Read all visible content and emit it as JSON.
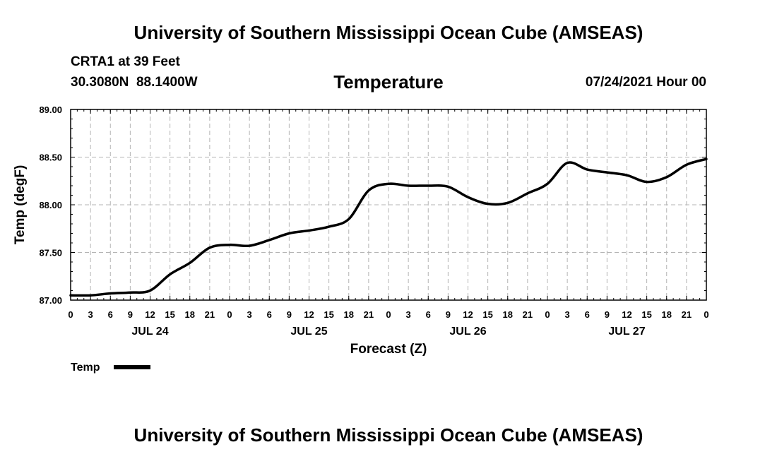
{
  "header": {
    "title": "University of Southern Mississippi Ocean Cube (AMSEAS)",
    "station": "CRTA1 at 39 Feet",
    "coords": "30.3080N  88.1400W",
    "variable": "Temperature",
    "datetime": "07/24/2021 Hour 00"
  },
  "footer": {
    "title": "University of Southern Mississippi Ocean Cube (AMSEAS)"
  },
  "chart_data": {
    "type": "line",
    "title": "Temperature",
    "xlabel": "Forecast (Z)",
    "ylabel": "Temp (degF)",
    "ylim": [
      87.0,
      89.0
    ],
    "xlim": [
      0,
      96
    ],
    "grid": true,
    "y_ticks": [
      "87.00",
      "87.50",
      "88.00",
      "88.50",
      "89.00"
    ],
    "x_tick_labels": [
      "0",
      "3",
      "6",
      "9",
      "12",
      "15",
      "18",
      "21",
      "0",
      "3",
      "6",
      "9",
      "12",
      "15",
      "18",
      "21",
      "0",
      "3",
      "6",
      "9",
      "12",
      "15",
      "18",
      "21",
      "0",
      "3",
      "6",
      "9",
      "12",
      "15",
      "18",
      "21",
      "0"
    ],
    "day_labels": [
      {
        "label": "JUL 24",
        "hour": 12
      },
      {
        "label": "JUL 25",
        "hour": 36
      },
      {
        "label": "JUL 26",
        "hour": 60
      },
      {
        "label": "JUL 27",
        "hour": 84
      }
    ],
    "legend": {
      "label": "Temp",
      "placement": "bottom-left"
    },
    "series": [
      {
        "name": "Temp",
        "x": [
          0,
          3,
          6,
          9,
          12,
          15,
          18,
          21,
          24,
          27,
          30,
          33,
          36,
          39,
          42,
          45,
          48,
          51,
          54,
          57,
          60,
          63,
          66,
          69,
          72,
          75,
          78,
          81,
          84,
          87,
          90,
          93,
          96
        ],
        "values": [
          87.05,
          87.05,
          87.07,
          87.08,
          87.1,
          87.27,
          87.39,
          87.55,
          87.58,
          87.57,
          87.63,
          87.7,
          87.73,
          87.77,
          87.85,
          88.15,
          88.22,
          88.2,
          88.2,
          88.19,
          88.08,
          88.01,
          88.02,
          88.12,
          88.22,
          88.44,
          88.37,
          88.34,
          88.31,
          88.24,
          88.29,
          88.42,
          88.48
        ]
      }
    ]
  }
}
